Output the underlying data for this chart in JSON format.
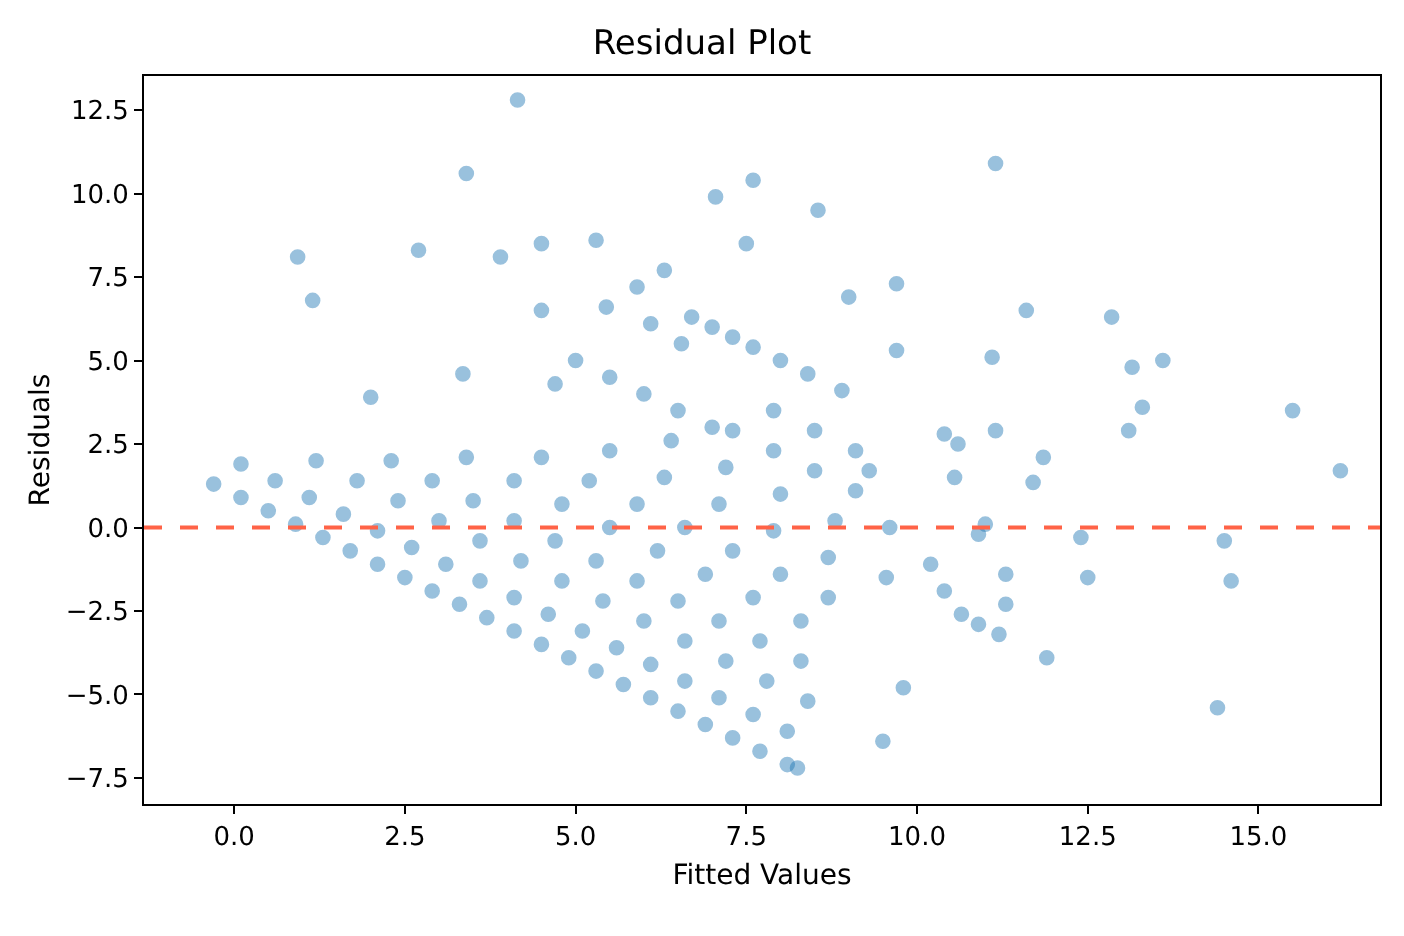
{
  "chart_data": {
    "type": "scatter",
    "title": "Residual Plot",
    "xlabel": "Fitted Values",
    "ylabel": "Residuals",
    "xlim": [
      -1.32,
      16.78
    ],
    "ylim": [
      -8.28,
      13.52
    ],
    "xticks": [
      {
        "value": 0,
        "label": "0.0"
      },
      {
        "value": 2.5,
        "label": "2.5"
      },
      {
        "value": 5,
        "label": "5.0"
      },
      {
        "value": 7.5,
        "label": "7.5"
      },
      {
        "value": 10,
        "label": "10.0"
      },
      {
        "value": 12.5,
        "label": "12.5"
      },
      {
        "value": 15,
        "label": "15.0"
      }
    ],
    "yticks": [
      {
        "value": -7.5,
        "label": "−7.5"
      },
      {
        "value": -5,
        "label": "−5.0"
      },
      {
        "value": -2.5,
        "label": "−2.5"
      },
      {
        "value": 0,
        "label": "0.0"
      },
      {
        "value": 2.5,
        "label": "2.5"
      },
      {
        "value": 5,
        "label": "5.0"
      },
      {
        "value": 7.5,
        "label": "7.5"
      },
      {
        "value": 10,
        "label": "10.0"
      },
      {
        "value": 12.5,
        "label": "12.5"
      }
    ],
    "marker": "circle",
    "ref_lines": [
      {
        "axis": "y",
        "value": 0,
        "color": "#ff6347",
        "line_style": "dashed"
      }
    ],
    "series": [
      {
        "color": "#1f77b4",
        "x": [
          -0.3,
          0.1,
          0.5,
          0.9,
          1.3,
          1.7,
          2.1,
          2.5,
          2.9,
          3.3,
          3.7,
          4.1,
          4.5,
          4.9,
          5.3,
          5.7,
          6.1,
          6.5,
          6.9,
          7.3,
          7.7,
          8.1,
          0.1,
          0.6,
          1.1,
          1.6,
          2.1,
          2.6,
          3.1,
          3.6,
          4.1,
          4.6,
          5.1,
          5.6,
          6.1,
          6.6,
          7.1,
          7.6,
          8.1,
          1.2,
          1.8,
          2.4,
          3.0,
          3.6,
          4.2,
          4.8,
          5.4,
          6.0,
          6.6,
          7.2,
          7.8,
          8.4,
          2.3,
          2.9,
          3.5,
          4.1,
          4.7,
          5.3,
          5.9,
          6.5,
          7.1,
          7.7,
          8.3,
          3.4,
          4.1,
          4.8,
          5.5,
          6.2,
          6.9,
          7.6,
          8.3,
          4.5,
          5.2,
          5.9,
          6.6,
          7.3,
          8.0,
          8.7,
          5.5,
          6.3,
          7.1,
          7.9,
          8.7,
          6.4,
          7.2,
          8.0,
          8.8,
          7.3,
          7.9,
          8.5,
          9.1,
          7.9,
          8.5,
          9.1,
          6.7,
          7.0,
          7.3,
          7.6,
          8.0,
          8.4,
          8.9,
          5.0,
          5.5,
          6.0,
          6.5,
          7.0,
          0.93,
          1.15,
          2.0,
          2.7,
          3.4,
          3.35,
          3.9,
          4.15,
          4.5,
          4.5,
          4.7,
          5.3,
          5.45,
          5.9,
          6.1,
          6.3,
          6.55,
          7.05,
          7.5,
          7.6,
          8.55,
          9.0,
          9.7,
          9.7,
          11.15,
          11.1,
          11.6,
          12.85,
          13.15,
          13.6,
          13.3,
          13.1,
          15.5,
          16.2,
          14.5,
          14.6,
          14.4,
          12.4,
          12.5,
          11.9,
          11.7,
          11.85,
          11.15,
          10.4,
          10.6,
          10.55,
          10.2,
          10.4,
          10.9,
          10.65,
          11.2,
          11.3,
          11.3,
          11.0,
          10.9,
          9.8,
          9.5,
          9.55,
          8.25,
          9.3,
          9.6
        ],
        "values": [
          1.3,
          0.9,
          0.5,
          0.1,
          -0.3,
          -0.7,
          -1.1,
          -1.5,
          -1.9,
          -2.3,
          -2.7,
          -3.1,
          -3.5,
          -3.9,
          -4.3,
          -4.7,
          -5.1,
          -5.5,
          -5.9,
          -6.3,
          -6.7,
          -7.1,
          1.9,
          1.4,
          0.9,
          0.4,
          -0.1,
          -0.6,
          -1.1,
          -1.6,
          -2.1,
          -2.6,
          -3.1,
          -3.6,
          -4.1,
          -4.6,
          -5.1,
          -5.6,
          -6.1,
          2.0,
          1.4,
          0.8,
          0.2,
          -0.4,
          -1.0,
          -1.6,
          -2.2,
          -2.8,
          -3.4,
          -4.0,
          -4.6,
          -5.2,
          2.0,
          1.4,
          0.8,
          0.2,
          -0.4,
          -1.0,
          -1.6,
          -2.2,
          -2.8,
          -3.4,
          -4.0,
          2.1,
          1.4,
          0.7,
          0.0,
          -0.7,
          -1.4,
          -2.1,
          -2.8,
          2.1,
          1.4,
          0.7,
          0.0,
          -0.7,
          -1.4,
          -2.1,
          2.3,
          1.5,
          0.7,
          -0.1,
          -0.9,
          2.6,
          1.8,
          1.0,
          0.2,
          2.9,
          2.3,
          1.7,
          1.1,
          3.5,
          2.9,
          2.3,
          6.3,
          6.0,
          5.7,
          5.4,
          5.0,
          4.6,
          4.1,
          5.0,
          4.5,
          4.0,
          3.5,
          3.0,
          8.1,
          6.8,
          3.9,
          8.3,
          10.6,
          4.6,
          8.1,
          12.8,
          8.5,
          6.5,
          4.3,
          8.6,
          6.6,
          7.2,
          6.1,
          7.7,
          5.5,
          9.9,
          8.5,
          10.4,
          9.5,
          6.9,
          7.3,
          5.3,
          10.9,
          5.1,
          6.5,
          6.3,
          4.8,
          5.0,
          3.6,
          2.9,
          3.5,
          1.7,
          -0.4,
          -1.6,
          -5.4,
          -0.3,
          -1.5,
          -3.9,
          1.35,
          2.1,
          2.9,
          2.8,
          2.5,
          1.5,
          -1.1,
          -1.9,
          -2.9,
          -2.6,
          -3.2,
          -2.3,
          -1.4,
          0.1,
          -0.2,
          -4.8,
          -6.4,
          -1.5,
          -7.2,
          1.7,
          0.0
        ]
      }
    ]
  }
}
